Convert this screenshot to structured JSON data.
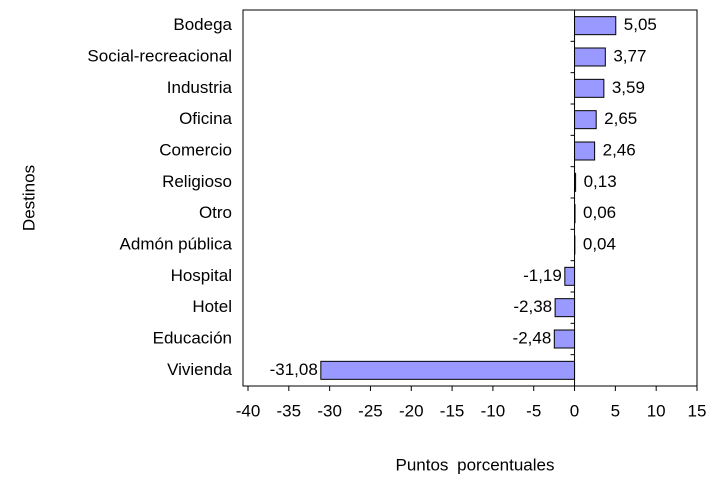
{
  "chart_data": {
    "type": "bar",
    "orientation": "horizontal",
    "categories": [
      "Bodega",
      "Social-recreacional",
      "Industria",
      "Oficina",
      "Comercio",
      "Religioso",
      "Otro",
      "Admón pública",
      "Hospital",
      "Hotel",
      "Educación",
      "Vivienda"
    ],
    "values": [
      5.05,
      3.77,
      3.59,
      2.65,
      2.46,
      0.13,
      0.06,
      0.04,
      -1.19,
      -2.38,
      -2.48,
      -31.08
    ],
    "value_labels": [
      "5,05",
      "3,77",
      "3,59",
      "2,65",
      "2,46",
      "0,13",
      "0,06",
      "0,04",
      "-1,19",
      "-2,38",
      "-2,48",
      "-31,08"
    ],
    "color": "#9999ff",
    "xlim": [
      -40,
      15
    ],
    "xticks": [
      -40,
      -35,
      -30,
      -25,
      -20,
      -15,
      -10,
      -5,
      0,
      5,
      10,
      15
    ],
    "xlabel": "Puntos porcentuales",
    "ylabel": "Destinos",
    "grid": false
  }
}
